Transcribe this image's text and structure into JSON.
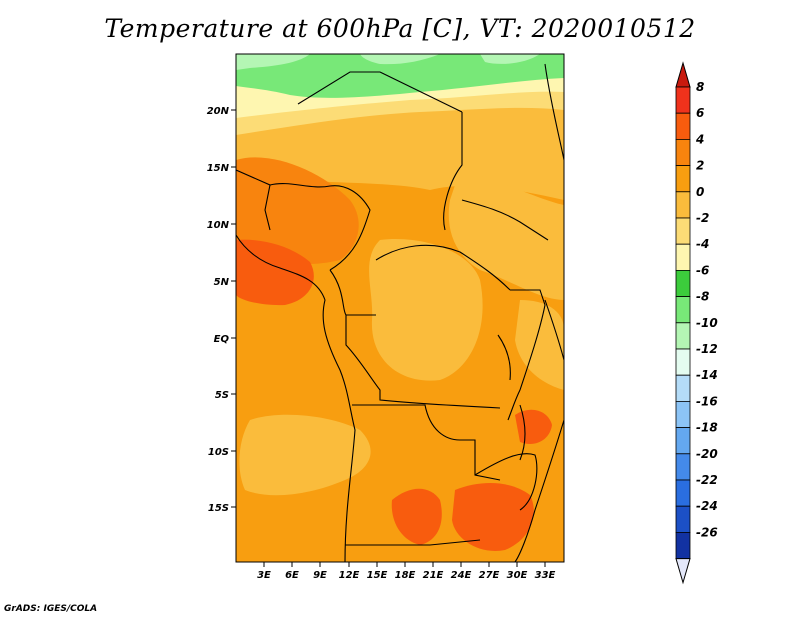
{
  "title": "Temperature at 600hPa [C], VT: 2020010512",
  "credit": "GrADS: IGES/COLA",
  "map": {
    "lat_ticks": [
      "20N",
      "15N",
      "10N",
      "5N",
      "EQ",
      "5S",
      "10S",
      "15S"
    ],
    "lon_ticks": [
      "3E",
      "6E",
      "9E",
      "12E",
      "15E",
      "18E",
      "21E",
      "24E",
      "27E",
      "30E",
      "33E"
    ]
  },
  "colorbar": {
    "labels": [
      "8",
      "6",
      "4",
      "2",
      "0",
      "-2",
      "-4",
      "-6",
      "-8",
      "-10",
      "-12",
      "-14",
      "-16",
      "-18",
      "-20",
      "-22",
      "-24",
      "-26"
    ],
    "colors": [
      "#f0321c",
      "#f85c0e",
      "#f8840e",
      "#f89e10",
      "#fabc3c",
      "#fcdc76",
      "#fef6b0",
      "#3ccc3c",
      "#78e878",
      "#b4f6b4",
      "#e4fcf0",
      "#b4dcf8",
      "#8cc4f6",
      "#64a8f0",
      "#448aea",
      "#2a6ee0",
      "#1c50c6",
      "#1232a2",
      "#0a1c78"
    ],
    "top_color": "#c81a0e",
    "bottom_color": "#e4e8fa"
  }
}
